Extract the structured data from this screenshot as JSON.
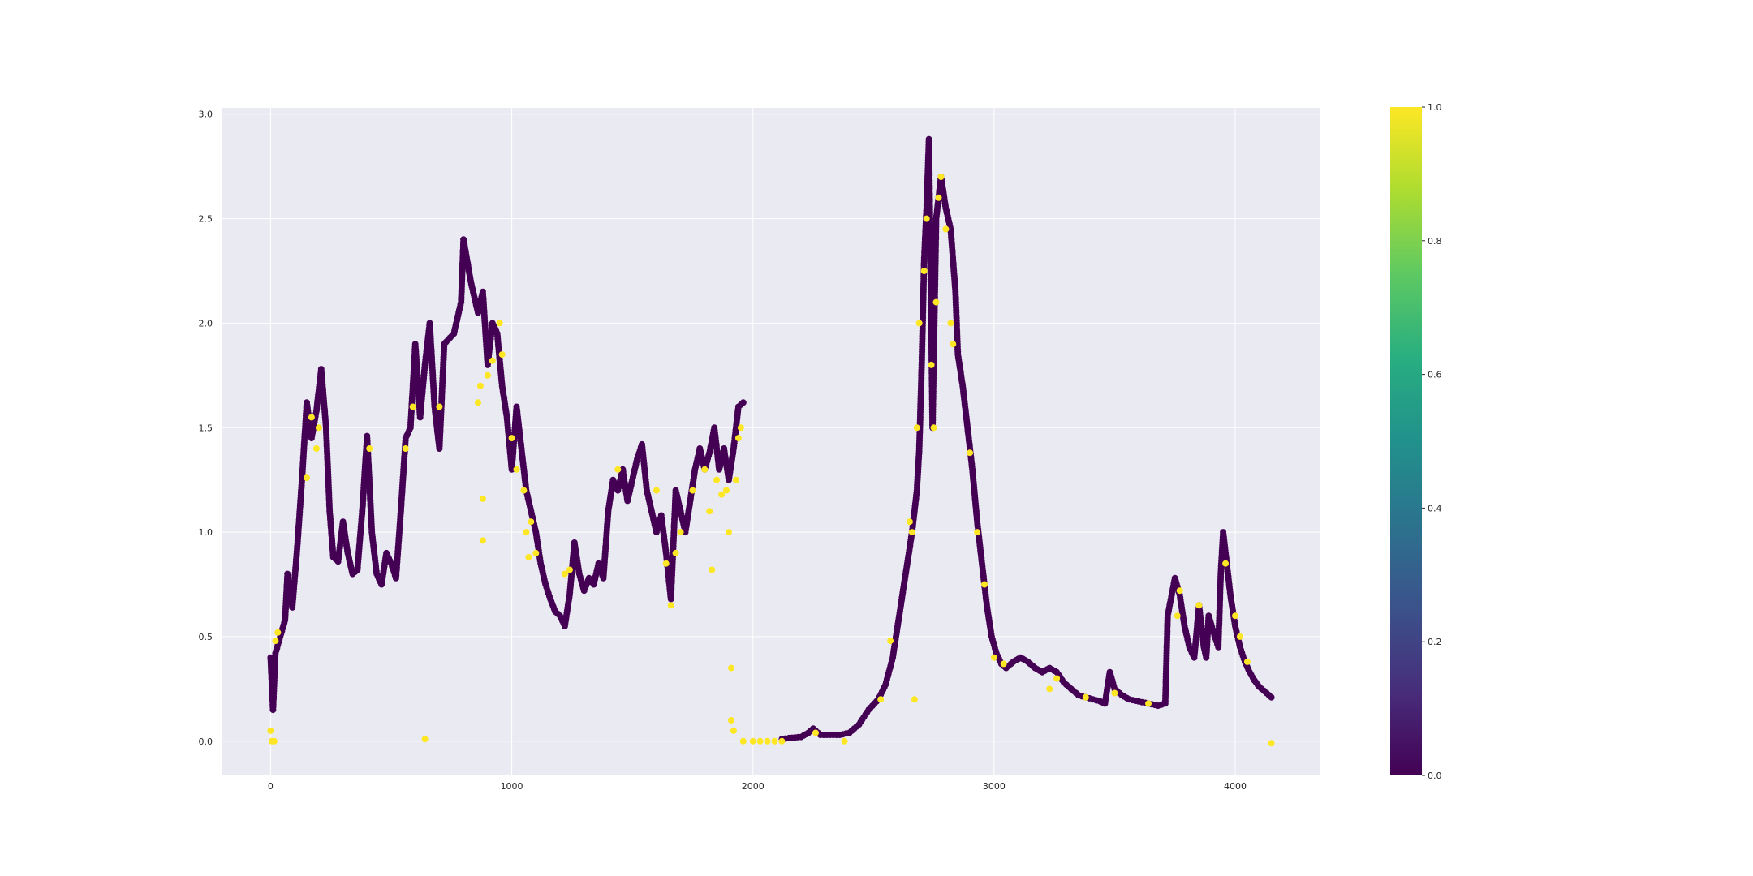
{
  "chart_data": {
    "type": "scatter",
    "title": "",
    "xlabel": "",
    "ylabel": "",
    "xlim": [
      -200,
      4350
    ],
    "ylim": [
      -0.16,
      3.03
    ],
    "grid": true,
    "background_color": "#eaeaf2",
    "grid_color": "#ffffff",
    "colormap": "viridis",
    "color_range": [
      0.0,
      1.0
    ],
    "class_colors": {
      "0": "#440154",
      "1": "#fde725"
    },
    "x_ticks": [
      0,
      1000,
      2000,
      3000,
      4000
    ],
    "y_ticks": [
      0.0,
      0.5,
      1.0,
      1.5,
      2.0,
      2.5,
      3.0
    ],
    "colorbar_ticks": [
      0.0,
      0.2,
      0.4,
      0.6,
      0.8,
      1.0
    ],
    "series": [
      {
        "class": 0,
        "trace": [
          [
            0,
            0.4
          ],
          [
            10,
            0.15
          ],
          [
            20,
            0.42
          ],
          [
            40,
            0.5
          ],
          [
            60,
            0.58
          ],
          [
            70,
            0.8
          ],
          [
            90,
            0.64
          ],
          [
            110,
            0.92
          ],
          [
            130,
            1.25
          ],
          [
            150,
            1.62
          ],
          [
            170,
            1.45
          ],
          [
            190,
            1.58
          ],
          [
            210,
            1.78
          ],
          [
            230,
            1.5
          ],
          [
            245,
            1.1
          ],
          [
            260,
            0.88
          ],
          [
            280,
            0.86
          ],
          [
            300,
            1.05
          ],
          [
            320,
            0.9
          ],
          [
            340,
            0.8
          ],
          [
            360,
            0.82
          ],
          [
            380,
            1.1
          ],
          [
            400,
            1.46
          ],
          [
            420,
            1.0
          ],
          [
            440,
            0.8
          ],
          [
            460,
            0.75
          ],
          [
            480,
            0.9
          ],
          [
            500,
            0.85
          ],
          [
            520,
            0.78
          ],
          [
            540,
            1.1
          ],
          [
            560,
            1.45
          ],
          [
            580,
            1.5
          ],
          [
            600,
            1.9
          ],
          [
            620,
            1.55
          ],
          [
            640,
            1.8
          ],
          [
            660,
            2.0
          ],
          [
            680,
            1.6
          ],
          [
            700,
            1.4
          ],
          [
            720,
            1.9
          ],
          [
            760,
            1.95
          ],
          [
            790,
            2.1
          ],
          [
            800,
            2.4
          ],
          [
            830,
            2.2
          ],
          [
            860,
            2.05
          ],
          [
            880,
            2.15
          ],
          [
            900,
            1.8
          ],
          [
            920,
            2.0
          ],
          [
            940,
            1.95
          ],
          [
            960,
            1.7
          ],
          [
            980,
            1.55
          ],
          [
            1000,
            1.3
          ],
          [
            1020,
            1.6
          ],
          [
            1040,
            1.4
          ],
          [
            1060,
            1.2
          ],
          [
            1080,
            1.1
          ],
          [
            1100,
            1.0
          ],
          [
            1120,
            0.85
          ],
          [
            1140,
            0.75
          ],
          [
            1160,
            0.68
          ],
          [
            1180,
            0.62
          ],
          [
            1200,
            0.6
          ],
          [
            1220,
            0.55
          ],
          [
            1240,
            0.7
          ],
          [
            1260,
            0.95
          ],
          [
            1280,
            0.8
          ],
          [
            1300,
            0.72
          ],
          [
            1320,
            0.78
          ],
          [
            1340,
            0.75
          ],
          [
            1360,
            0.85
          ],
          [
            1380,
            0.78
          ],
          [
            1400,
            1.1
          ],
          [
            1420,
            1.25
          ],
          [
            1440,
            1.2
          ],
          [
            1460,
            1.3
          ],
          [
            1480,
            1.15
          ],
          [
            1500,
            1.25
          ],
          [
            1520,
            1.35
          ],
          [
            1540,
            1.42
          ],
          [
            1560,
            1.2
          ],
          [
            1580,
            1.1
          ],
          [
            1600,
            1.0
          ],
          [
            1620,
            1.08
          ],
          [
            1640,
            0.9
          ],
          [
            1660,
            0.68
          ],
          [
            1680,
            1.2
          ],
          [
            1700,
            1.1
          ],
          [
            1720,
            1.0
          ],
          [
            1740,
            1.15
          ],
          [
            1760,
            1.3
          ],
          [
            1780,
            1.4
          ],
          [
            1800,
            1.3
          ],
          [
            1820,
            1.38
          ],
          [
            1840,
            1.5
          ],
          [
            1860,
            1.3
          ],
          [
            1880,
            1.4
          ],
          [
            1900,
            1.25
          ],
          [
            1920,
            1.4
          ],
          [
            1940,
            1.6
          ],
          [
            1960,
            1.62
          ],
          [
            2120,
            0.01
          ],
          [
            2150,
            0.015
          ],
          [
            2200,
            0.02
          ],
          [
            2230,
            0.04
          ],
          [
            2250,
            0.06
          ],
          [
            2280,
            0.03
          ],
          [
            2320,
            0.03
          ],
          [
            2360,
            0.03
          ],
          [
            2400,
            0.04
          ],
          [
            2440,
            0.08
          ],
          [
            2480,
            0.15
          ],
          [
            2520,
            0.2
          ],
          [
            2550,
            0.27
          ],
          [
            2580,
            0.4
          ],
          [
            2600,
            0.55
          ],
          [
            2620,
            0.7
          ],
          [
            2640,
            0.85
          ],
          [
            2660,
            1.0
          ],
          [
            2680,
            1.2
          ],
          [
            2690,
            1.4
          ],
          [
            2700,
            1.8
          ],
          [
            2710,
            2.3
          ],
          [
            2720,
            2.55
          ],
          [
            2730,
            2.88
          ],
          [
            2745,
            1.5
          ],
          [
            2760,
            2.5
          ],
          [
            2780,
            2.7
          ],
          [
            2800,
            2.55
          ],
          [
            2820,
            2.45
          ],
          [
            2830,
            2.3
          ],
          [
            2840,
            2.15
          ],
          [
            2850,
            1.85
          ],
          [
            2870,
            1.7
          ],
          [
            2890,
            1.5
          ],
          [
            2910,
            1.3
          ],
          [
            2930,
            1.05
          ],
          [
            2950,
            0.85
          ],
          [
            2970,
            0.65
          ],
          [
            2990,
            0.5
          ],
          [
            3010,
            0.42
          ],
          [
            3030,
            0.37
          ],
          [
            3050,
            0.35
          ],
          [
            3080,
            0.38
          ],
          [
            3110,
            0.4
          ],
          [
            3140,
            0.38
          ],
          [
            3170,
            0.35
          ],
          [
            3200,
            0.33
          ],
          [
            3230,
            0.35
          ],
          [
            3260,
            0.33
          ],
          [
            3290,
            0.28
          ],
          [
            3320,
            0.25
          ],
          [
            3350,
            0.22
          ],
          [
            3380,
            0.21
          ],
          [
            3410,
            0.2
          ],
          [
            3440,
            0.19
          ],
          [
            3460,
            0.18
          ],
          [
            3480,
            0.33
          ],
          [
            3500,
            0.25
          ],
          [
            3530,
            0.22
          ],
          [
            3560,
            0.2
          ],
          [
            3600,
            0.19
          ],
          [
            3640,
            0.18
          ],
          [
            3680,
            0.17
          ],
          [
            3710,
            0.18
          ],
          [
            3720,
            0.6
          ],
          [
            3750,
            0.78
          ],
          [
            3770,
            0.7
          ],
          [
            3790,
            0.55
          ],
          [
            3810,
            0.45
          ],
          [
            3830,
            0.4
          ],
          [
            3850,
            0.65
          ],
          [
            3870,
            0.45
          ],
          [
            3880,
            0.4
          ],
          [
            3890,
            0.6
          ],
          [
            3910,
            0.52
          ],
          [
            3930,
            0.45
          ],
          [
            3940,
            0.8
          ],
          [
            3950,
            1.0
          ],
          [
            3960,
            0.9
          ],
          [
            3980,
            0.7
          ],
          [
            4000,
            0.55
          ],
          [
            4020,
            0.45
          ],
          [
            4040,
            0.38
          ],
          [
            4060,
            0.33
          ],
          [
            4080,
            0.29
          ],
          [
            4100,
            0.26
          ],
          [
            4120,
            0.24
          ],
          [
            4140,
            0.22
          ],
          [
            4150,
            0.21
          ]
        ]
      },
      {
        "class": 1,
        "points": [
          [
            0,
            0.05
          ],
          [
            5,
            0.0
          ],
          [
            15,
            0.0
          ],
          [
            20,
            0.48
          ],
          [
            30,
            0.52
          ],
          [
            150,
            1.26
          ],
          [
            170,
            1.55
          ],
          [
            190,
            1.4
          ],
          [
            200,
            1.5
          ],
          [
            410,
            1.4
          ],
          [
            560,
            1.4
          ],
          [
            590,
            1.6
          ],
          [
            640,
            0.01
          ],
          [
            700,
            1.6
          ],
          [
            860,
            1.62
          ],
          [
            870,
            1.7
          ],
          [
            880,
            1.16
          ],
          [
            880,
            0.96
          ],
          [
            900,
            1.75
          ],
          [
            920,
            1.82
          ],
          [
            950,
            2.0
          ],
          [
            960,
            1.85
          ],
          [
            1000,
            1.45
          ],
          [
            1020,
            1.3
          ],
          [
            1050,
            1.2
          ],
          [
            1060,
            1.0
          ],
          [
            1070,
            0.88
          ],
          [
            1080,
            1.05
          ],
          [
            1100,
            0.9
          ],
          [
            1220,
            0.8
          ],
          [
            1240,
            0.82
          ],
          [
            1440,
            1.3
          ],
          [
            1600,
            1.2
          ],
          [
            1640,
            0.85
          ],
          [
            1660,
            0.65
          ],
          [
            1680,
            0.9
          ],
          [
            1700,
            1.0
          ],
          [
            1750,
            1.2
          ],
          [
            1800,
            1.3
          ],
          [
            1820,
            1.1
          ],
          [
            1830,
            0.82
          ],
          [
            1850,
            1.25
          ],
          [
            1870,
            1.18
          ],
          [
            1890,
            1.2
          ],
          [
            1900,
            1.0
          ],
          [
            1910,
            0.35
          ],
          [
            1910,
            0.1
          ],
          [
            1920,
            0.05
          ],
          [
            1930,
            1.25
          ],
          [
            1940,
            1.45
          ],
          [
            1950,
            1.5
          ],
          [
            1960,
            0.0
          ],
          [
            2000,
            0.0
          ],
          [
            2030,
            0.0
          ],
          [
            2060,
            0.0
          ],
          [
            2090,
            0.0
          ],
          [
            2120,
            0.0
          ],
          [
            2260,
            0.04
          ],
          [
            2380,
            0.0
          ],
          [
            2530,
            0.2
          ],
          [
            2570,
            0.48
          ],
          [
            2650,
            1.05
          ],
          [
            2660,
            1.0
          ],
          [
            2670,
            0.2
          ],
          [
            2680,
            1.5
          ],
          [
            2690,
            2.0
          ],
          [
            2710,
            2.25
          ],
          [
            2720,
            2.5
          ],
          [
            2740,
            1.8
          ],
          [
            2750,
            1.5
          ],
          [
            2760,
            2.1
          ],
          [
            2770,
            2.6
          ],
          [
            2780,
            2.7
          ],
          [
            2800,
            2.45
          ],
          [
            2820,
            2.0
          ],
          [
            2830,
            1.9
          ],
          [
            2900,
            1.38
          ],
          [
            2930,
            1.0
          ],
          [
            2960,
            0.75
          ],
          [
            3000,
            0.4
          ],
          [
            3040,
            0.37
          ],
          [
            3230,
            0.25
          ],
          [
            3260,
            0.3
          ],
          [
            3380,
            0.21
          ],
          [
            3500,
            0.23
          ],
          [
            3640,
            0.18
          ],
          [
            3760,
            0.6
          ],
          [
            3770,
            0.72
          ],
          [
            3850,
            0.65
          ],
          [
            3960,
            0.85
          ],
          [
            4000,
            0.6
          ],
          [
            4020,
            0.5
          ],
          [
            4050,
            0.38
          ],
          [
            4150,
            -0.01
          ]
        ]
      }
    ]
  }
}
